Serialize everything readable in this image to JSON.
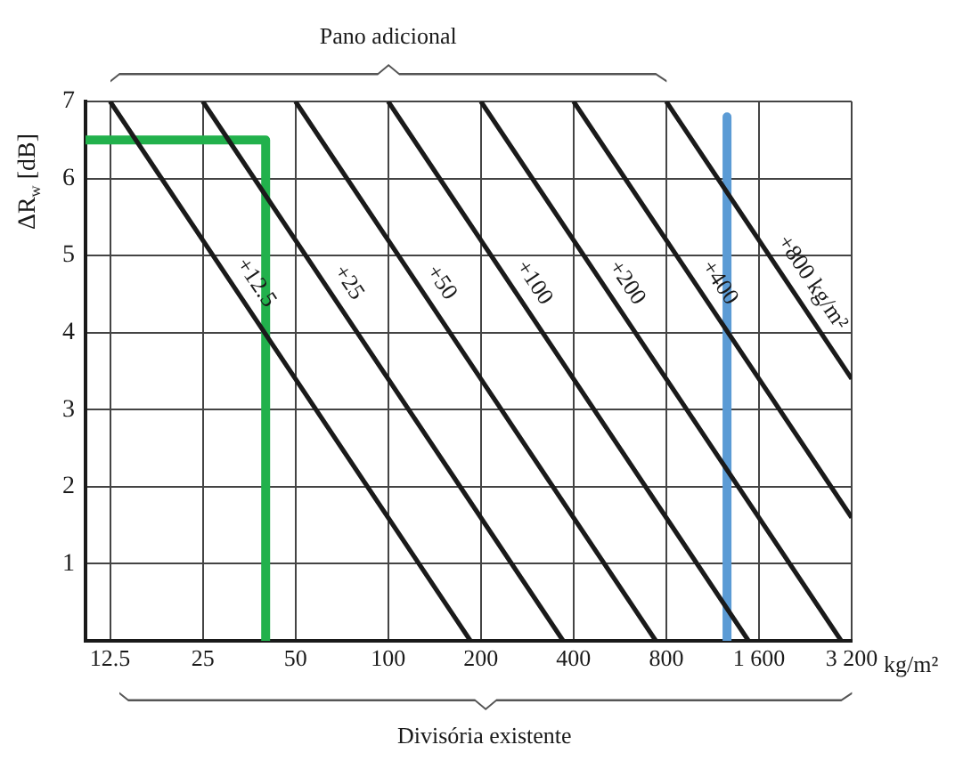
{
  "chart_data": {
    "type": "line",
    "xlabel": "kg/m²",
    "ylabel": "ΔR$_{w}$ [dB]",
    "annotations": [
      "Pano adicional",
      "Divisória existente"
    ],
    "log": "x",
    "xlim": [
      10.4,
      3200
    ],
    "xticks": [
      12.5,
      25,
      50,
      100,
      200,
      400,
      800,
      {
        "value": 1600,
        "label": "1 600"
      },
      {
        "value": 3200,
        "label": "3 200"
      }
    ],
    "ylim": [
      0,
      7
    ],
    "yticks": [
      1,
      2,
      3,
      4,
      5,
      6,
      7
    ],
    "grid": true,
    "legend": false,
    "marker": "none",
    "line_style": "solid",
    "series": [
      {
        "name": "+12.5",
        "color": "#1a1a1a",
        "x": [
          12.5,
          185
        ],
        "values": [
          7,
          0
        ]
      },
      {
        "name": "+25",
        "color": "#1a1a1a",
        "x": [
          25,
          370
        ],
        "values": [
          7,
          0
        ]
      },
      {
        "name": "+50",
        "color": "#1a1a1a",
        "x": [
          50,
          740
        ],
        "values": [
          7,
          0
        ]
      },
      {
        "name": "+100",
        "color": "#1a1a1a",
        "x": [
          100,
          1480
        ],
        "values": [
          7,
          0
        ]
      },
      {
        "name": "+200",
        "color": "#1a1a1a",
        "x": [
          200,
          2960
        ],
        "values": [
          7,
          0
        ]
      },
      {
        "name": "+400",
        "color": "#1a1a1a",
        "x": [
          400,
          3200
        ],
        "values": [
          7,
          1.6
        ]
      },
      {
        "name": "+800 kg/m²",
        "color": "#1a1a1a",
        "x": [
          800,
          3200
        ],
        "values": [
          7,
          3.4
        ]
      },
      {
        "color": "#22b14c",
        "x": [
          10.4,
          40,
          40
        ],
        "values": [
          6.5,
          6.5,
          0
        ]
      },
      {
        "color": "#5b9bd5",
        "x": [
          1260,
          1260
        ],
        "values": [
          6.8,
          0
        ]
      }
    ]
  }
}
